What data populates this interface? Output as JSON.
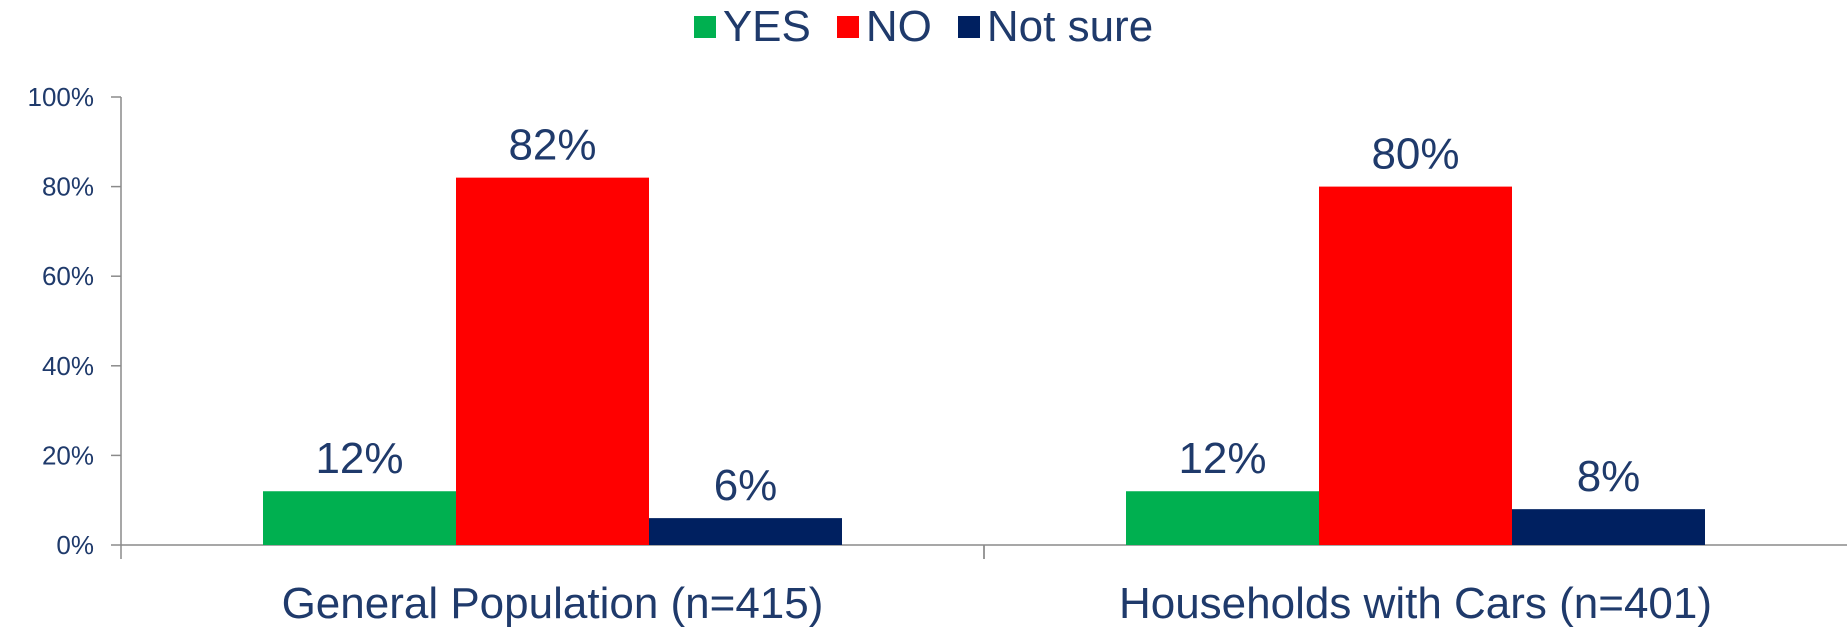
{
  "chart_data": {
    "type": "bar",
    "categories": [
      "General Population (n=415)",
      "Households with Cars (n=401)"
    ],
    "series": [
      {
        "name": "YES",
        "values": [
          12,
          12
        ],
        "labels": [
          "12%",
          "12%"
        ],
        "color": "#00b050"
      },
      {
        "name": "NO",
        "values": [
          82,
          80
        ],
        "labels": [
          "82%",
          "80%"
        ],
        "color": "#ff0000"
      },
      {
        "name": "Not sure",
        "values": [
          6,
          8
        ],
        "labels": [
          "6%",
          "8%"
        ],
        "color": "#002060"
      }
    ],
    "ylim": [
      0,
      100
    ],
    "yticks": [
      0,
      20,
      40,
      60,
      80,
      100
    ],
    "ytick_labels": [
      "0%",
      "20%",
      "40%",
      "60%",
      "80%",
      "100%"
    ],
    "legend_position": "top-center",
    "grid": false,
    "axis_color": "#8a8a8a",
    "text_color": "#1f3a6b"
  }
}
